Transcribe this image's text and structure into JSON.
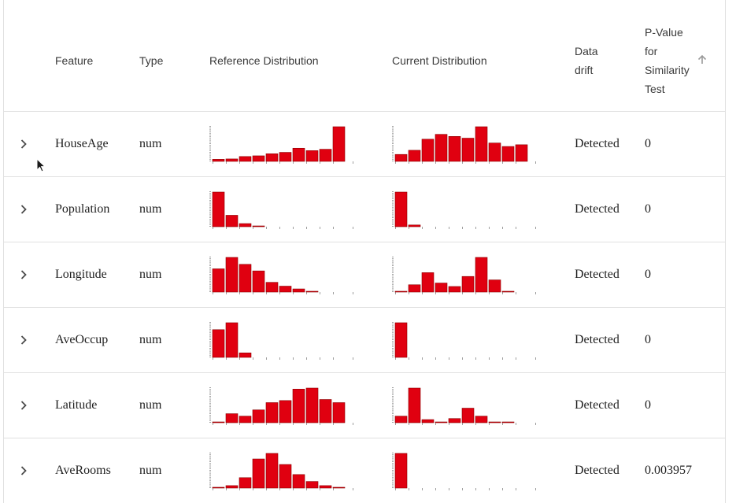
{
  "table": {
    "headers": {
      "feature": "Feature",
      "type": "Type",
      "reference": "Reference Distribution",
      "current": "Current Distribution",
      "drift": "Data drift",
      "pvalue": "P-Value for Similarity Test"
    },
    "sort_icon": "arrow-up-icon",
    "rows": [
      {
        "feature": "HouseAge",
        "type": "num",
        "drift": "Detected",
        "pvalue": "0",
        "ref": [
          0.06,
          0.07,
          0.14,
          0.16,
          0.22,
          0.26,
          0.38,
          0.31,
          0.35,
          1.0
        ],
        "cur": [
          0.2,
          0.32,
          0.64,
          0.78,
          0.72,
          0.67,
          1.0,
          0.53,
          0.43,
          0.48
        ]
      },
      {
        "feature": "Population",
        "type": "num",
        "drift": "Detected",
        "pvalue": "0",
        "ref": [
          1.0,
          0.33,
          0.09,
          0.02,
          0,
          0,
          0,
          0,
          0,
          0
        ],
        "cur": [
          1.0,
          0.05,
          0,
          0,
          0,
          0,
          0,
          0,
          0,
          0
        ]
      },
      {
        "feature": "Longitude",
        "type": "num",
        "drift": "Detected",
        "pvalue": "0",
        "ref": [
          0.67,
          1.0,
          0.8,
          0.61,
          0.28,
          0.17,
          0.09,
          0.02,
          0,
          0
        ],
        "cur": [
          0.02,
          0.21,
          0.56,
          0.26,
          0.16,
          0.45,
          1.0,
          0.35,
          0.02,
          0
        ],
        "drawn": [
          10,
          10
        ]
      },
      {
        "feature": "AveOccup",
        "type": "num",
        "drift": "Detected",
        "pvalue": "0",
        "ref": [
          0.8,
          1.0,
          0.13,
          0,
          0,
          0,
          0,
          0,
          0,
          0
        ],
        "cur": [
          1.0,
          0,
          0,
          0,
          0,
          0,
          0,
          0,
          0,
          0
        ]
      },
      {
        "feature": "Latitude",
        "type": "num",
        "drift": "Detected",
        "pvalue": "0",
        "ref": [
          0.02,
          0.26,
          0.19,
          0.37,
          0.58,
          0.64,
          0.97,
          1.0,
          0.67,
          0.58
        ],
        "cur": [
          0.19,
          1.0,
          0.09,
          0.02,
          0.12,
          0.42,
          0.19,
          0.02,
          0.02,
          0
        ]
      },
      {
        "feature": "AveRooms",
        "type": "num",
        "drift": "Detected",
        "pvalue": "0.003957",
        "ref": [
          0.02,
          0.07,
          0.3,
          0.84,
          1.0,
          0.68,
          0.39,
          0.19,
          0.07,
          0.02
        ],
        "cur": [
          1.0,
          0,
          0,
          0,
          0,
          0,
          0,
          0,
          0,
          0
        ]
      }
    ]
  },
  "colors": {
    "bar": "#e00010",
    "bar_stroke": "#8a0000",
    "axis": "#9e9e9e"
  },
  "icons": {
    "expand": "chevron-right-icon",
    "cursor": "mouse-cursor-icon"
  }
}
